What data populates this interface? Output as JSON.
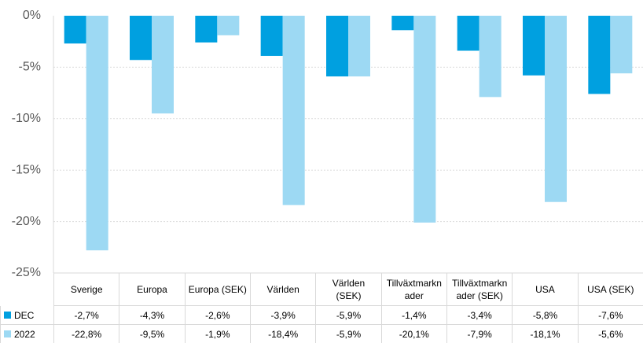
{
  "chart_data": {
    "type": "bar",
    "categories": [
      "Sverige",
      "Europa",
      "Europa (SEK)",
      "Världen",
      "Världen (SEK)",
      "Tillväxtmarknader",
      "Tillväxtmarknader (SEK)",
      "USA",
      "USA (SEK)"
    ],
    "series": [
      {
        "name": "DEC",
        "color": "#00a0e0",
        "values": [
          -2.7,
          -4.3,
          -2.6,
          -3.9,
          -5.9,
          -1.4,
          -3.4,
          -5.8,
          -7.6
        ],
        "value_labels": [
          "-2,7%",
          "-4,3%",
          "-2,6%",
          "-3,9%",
          "-5,9%",
          "-1,4%",
          "-3,4%",
          "-5,8%",
          "-7,6%"
        ]
      },
      {
        "name": "2022",
        "color": "#9dd9f3",
        "values": [
          -22.8,
          -9.5,
          -1.9,
          -18.4,
          -5.9,
          -20.1,
          -7.9,
          -18.1,
          -5.6
        ],
        "value_labels": [
          "-22,8%",
          "-9,5%",
          "-1,9%",
          "-18,4%",
          "-5,9%",
          "-20,1%",
          "-7,9%",
          "-18,1%",
          "-5,6%"
        ]
      }
    ],
    "ylim": [
      -25,
      0
    ],
    "yticks": [
      {
        "value": 0,
        "label": "0%"
      },
      {
        "value": -5,
        "label": "-5%"
      },
      {
        "value": -10,
        "label": "-10%"
      },
      {
        "value": -15,
        "label": "-15%"
      },
      {
        "value": -20,
        "label": "-20%"
      },
      {
        "value": -25,
        "label": "-25%"
      }
    ],
    "grid": true
  }
}
